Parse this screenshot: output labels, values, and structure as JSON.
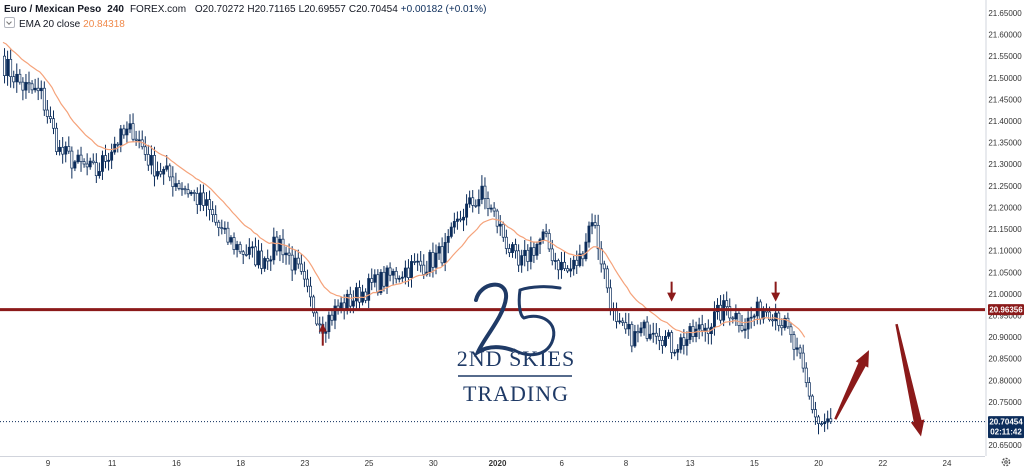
{
  "header": {
    "symbol": "Euro / Mexican Peso",
    "interval": "240",
    "exchange": "FOREX.com",
    "open": "O20.70272",
    "high": "H20.71165",
    "low": "L20.69557",
    "close": "C20.70454",
    "change": "+0.00182 (+0.01%)",
    "ema_label": "EMA 20 close",
    "ema_value": "20.84318"
  },
  "logo": {
    "mark": "25",
    "line1": "2ND SKIES",
    "line2": "TRADING"
  },
  "colors": {
    "up_candle": "#0c2d5b",
    "down_candle_fill": "#ffffff",
    "ema": "#f5a27a",
    "level_line": "#8b1a1a",
    "arrows": "#8b1a1a",
    "price_tag": "#0c2d5b",
    "level_tag": "#8b1a1a"
  },
  "chart_data": {
    "type": "candlestick",
    "y_axis": {
      "ticks": [
        "21.65000",
        "21.60000",
        "21.55000",
        "21.50000",
        "21.45000",
        "21.40000",
        "21.35000",
        "21.30000",
        "21.25000",
        "21.20000",
        "21.15000",
        "21.10000",
        "21.05000",
        "21.00000",
        "20.95000",
        "20.90000",
        "20.85000",
        "20.80000",
        "20.75000",
        "20.70000",
        "20.65000"
      ],
      "range": [
        20.625,
        21.68
      ]
    },
    "x_axis": {
      "ticks": [
        "9",
        "11",
        "16",
        "18",
        "23",
        "25",
        "30",
        "2020",
        "6",
        "8",
        "13",
        "15",
        "20",
        "22",
        "24"
      ]
    },
    "horizontal_level": 20.96356,
    "level_label": "20.96356",
    "last_price": 20.70454,
    "last_price_label": "20.70454",
    "countdown_label": "02:11:42",
    "price_anchors": [
      [
        0,
        21.53
      ],
      [
        6,
        21.48
      ],
      [
        12,
        21.46
      ],
      [
        18,
        21.33
      ],
      [
        24,
        21.3
      ],
      [
        30,
        21.28
      ],
      [
        36,
        21.35
      ],
      [
        42,
        21.38
      ],
      [
        48,
        21.3
      ],
      [
        54,
        21.27
      ],
      [
        60,
        21.24
      ],
      [
        66,
        21.2
      ],
      [
        72,
        21.13
      ],
      [
        78,
        21.1
      ],
      [
        84,
        21.08
      ],
      [
        90,
        21.12
      ],
      [
        96,
        21.05
      ],
      [
        100,
        20.98
      ],
      [
        104,
        20.93
      ],
      [
        108,
        20.96
      ],
      [
        114,
        20.99
      ],
      [
        120,
        21.02
      ],
      [
        126,
        21.04
      ],
      [
        132,
        21.06
      ],
      [
        138,
        21.07
      ],
      [
        144,
        21.1
      ],
      [
        150,
        21.19
      ],
      [
        156,
        21.23
      ],
      [
        160,
        21.18
      ],
      [
        164,
        21.12
      ],
      [
        168,
        21.06
      ],
      [
        172,
        21.1
      ],
      [
        176,
        21.13
      ],
      [
        180,
        21.08
      ],
      [
        184,
        21.05
      ],
      [
        188,
        21.08
      ],
      [
        192,
        21.18
      ],
      [
        196,
        21.05
      ],
      [
        200,
        20.92
      ],
      [
        206,
        20.9
      ],
      [
        212,
        20.93
      ],
      [
        218,
        20.88
      ],
      [
        224,
        20.9
      ],
      [
        230,
        20.93
      ],
      [
        236,
        20.97
      ],
      [
        242,
        20.93
      ],
      [
        248,
        20.97
      ],
      [
        252,
        20.96
      ],
      [
        256,
        20.91
      ],
      [
        260,
        20.84
      ],
      [
        263,
        20.76
      ],
      [
        266,
        20.7
      ],
      [
        270,
        20.7
      ]
    ],
    "ema_start": 21.59,
    "arrows": [
      {
        "direction": "up",
        "candle": 104
      },
      {
        "direction": "down",
        "candle": 218
      },
      {
        "direction": "down",
        "candle": 252
      }
    ],
    "projection": [
      {
        "from": [
          272,
          20.71
        ],
        "to": [
          283,
          20.87
        ]
      },
      {
        "from": [
          292,
          20.93
        ],
        "to": [
          300,
          20.67
        ]
      }
    ]
  }
}
